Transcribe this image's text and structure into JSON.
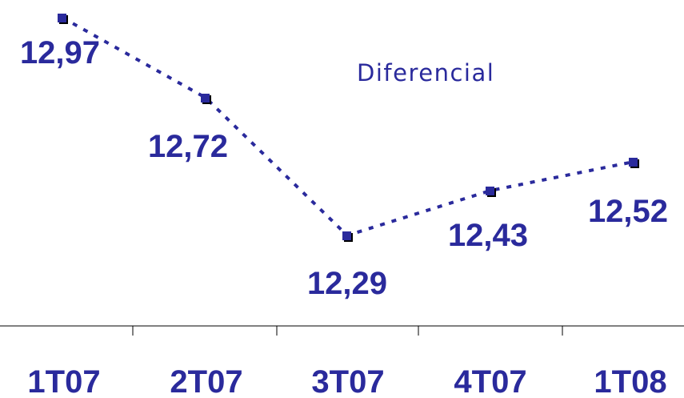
{
  "chart_data": {
    "type": "line",
    "categories": [
      "1T07",
      "2T07",
      "3T07",
      "4T07",
      "1T08"
    ],
    "series": [
      {
        "name": "Diferencial",
        "values": [
          12.97,
          12.72,
          12.29,
          12.43,
          12.52
        ],
        "labels": [
          "12,97",
          "12,72",
          "12,29",
          "12,43",
          "12,52"
        ]
      }
    ],
    "title": "",
    "xlabel": "",
    "ylabel": "",
    "grid": false,
    "legend": "none",
    "line_style": "dotted",
    "marker": "square"
  },
  "colors": {
    "series": "#2a2a9c",
    "marker_shadow": "#000000",
    "axis": "#000000"
  }
}
